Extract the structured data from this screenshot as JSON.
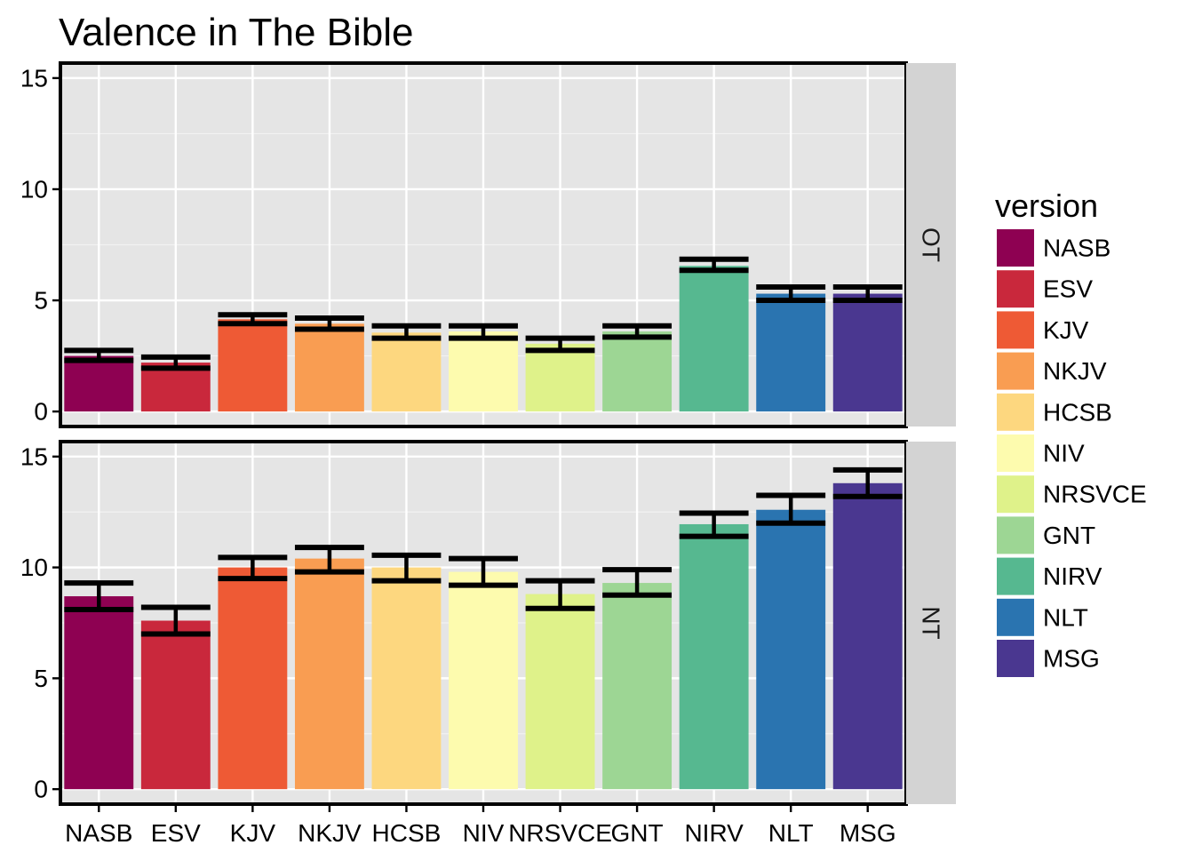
{
  "chart_data": {
    "type": "bar",
    "title": "Valence in The Bible",
    "xlabel": "",
    "ylabel": "",
    "categories": [
      "NASB",
      "ESV",
      "KJV",
      "NKJV",
      "HCSB",
      "NIV",
      "NRSVCE",
      "GNT",
      "NIRV",
      "NLT",
      "MSG"
    ],
    "colors": [
      "#8E0152",
      "#C9283C",
      "#EE5A35",
      "#F99D52",
      "#FDD77F",
      "#FDFBAE",
      "#DFF28A",
      "#9DD694",
      "#56B890",
      "#2A74B0",
      "#4A3790"
    ],
    "legend_title": "version",
    "legend_position": "right",
    "ylim": [
      0,
      15
    ],
    "yticks": [
      0,
      5,
      10,
      15
    ],
    "grid": true,
    "panels": [
      {
        "label": "OT",
        "values": [
          2.5,
          2.2,
          4.15,
          3.95,
          3.55,
          3.6,
          3.05,
          3.6,
          6.55,
          5.3,
          5.3
        ],
        "error_lower": [
          2.3,
          1.95,
          3.95,
          3.7,
          3.3,
          3.3,
          2.75,
          3.35,
          6.35,
          5.0,
          5.0
        ],
        "error_upper": [
          2.75,
          2.45,
          4.35,
          4.2,
          3.85,
          3.85,
          3.3,
          3.85,
          6.85,
          5.6,
          5.6
        ]
      },
      {
        "label": "NT",
        "values": [
          8.7,
          7.6,
          10.0,
          10.4,
          10.0,
          9.8,
          8.8,
          9.3,
          11.95,
          12.6,
          13.8
        ],
        "error_lower": [
          8.1,
          7.0,
          9.5,
          9.8,
          9.4,
          9.2,
          8.15,
          8.75,
          11.4,
          12.0,
          13.2
        ],
        "error_upper": [
          9.3,
          8.2,
          10.45,
          10.9,
          10.55,
          10.4,
          9.4,
          9.9,
          12.45,
          13.25,
          14.4
        ]
      }
    ]
  }
}
